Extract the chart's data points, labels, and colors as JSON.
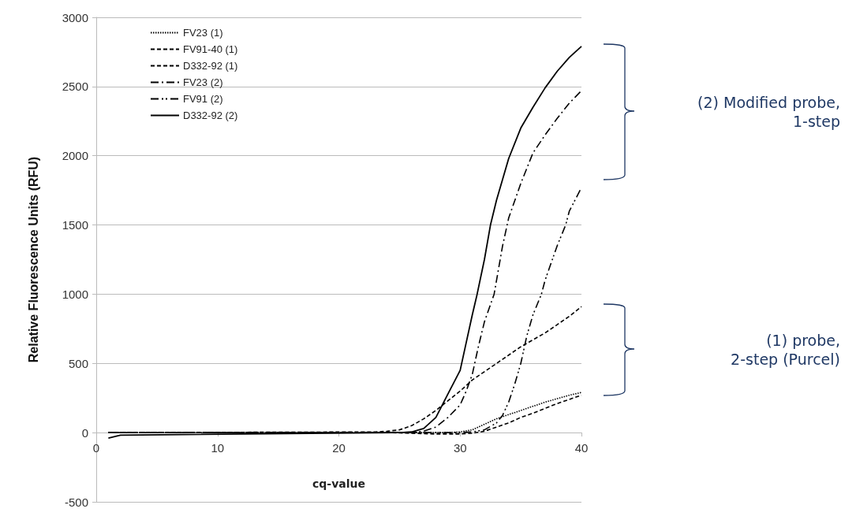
{
  "chart_data": {
    "type": "line",
    "xlabel": "cq-value",
    "ylabel": "Relative Fluorescence Units (RFU)",
    "xlim": [
      0,
      40
    ],
    "xticks": [
      0,
      10,
      20,
      30,
      40
    ],
    "ylim": [
      -500,
      3000
    ],
    "yticks": [
      -500,
      0,
      500,
      1000,
      1500,
      2000,
      2500,
      3000
    ],
    "grid": "y",
    "legend": "top left",
    "marker": "none",
    "annotations": [
      "(2) Modified probe,\n1-step",
      "(1) probe,\n2-step (Purcel)"
    ],
    "series": [
      {
        "name": "FV23 (1)",
        "color": "#000000",
        "line_style": "dotted",
        "x": [
          1,
          29,
          30,
          31,
          32,
          33,
          34,
          35,
          36,
          37,
          38,
          39,
          40
        ],
        "values": [
          0,
          0,
          5,
          20,
          60,
          100,
          130,
          160,
          190,
          220,
          245,
          270,
          290
        ]
      },
      {
        "name": "FV91-40 (1)",
        "color": "#000000",
        "line_style": "dashed",
        "x": [
          1,
          24,
          28,
          30,
          31,
          32,
          33,
          34,
          35,
          36,
          37,
          38,
          39,
          40
        ],
        "values": [
          0,
          0,
          -10,
          -10,
          -5,
          10,
          40,
          70,
          110,
          140,
          175,
          210,
          240,
          270
        ]
      },
      {
        "name": "D332-92 (1)",
        "color": "#000000",
        "line_style": "dashed",
        "x": [
          1,
          23,
          24,
          25,
          26,
          27,
          28,
          29,
          30,
          31,
          32,
          33,
          34,
          35,
          36,
          37,
          38,
          39,
          40
        ],
        "values": [
          0,
          5,
          10,
          20,
          50,
          100,
          160,
          230,
          300,
          380,
          440,
          500,
          560,
          620,
          670,
          720,
          780,
          840,
          910
        ]
      },
      {
        "name": "FV23 (2)",
        "color": "#000000",
        "line_style": "dashdot",
        "x": [
          1,
          26,
          27,
          28,
          29,
          30,
          30.5,
          31,
          31.5,
          32,
          32.8,
          33.5,
          34,
          35,
          36,
          37,
          38,
          39,
          40
        ],
        "values": [
          0,
          0,
          10,
          40,
          110,
          200,
          300,
          420,
          620,
          800,
          1000,
          1350,
          1550,
          1800,
          2020,
          2150,
          2270,
          2380,
          2470
        ]
      },
      {
        "name": "FV91 (2)",
        "color": "#000000",
        "line_style": "dashdotdot",
        "x": [
          1,
          30,
          31,
          32,
          33,
          33.5,
          34,
          34.5,
          35,
          35.5,
          36,
          36.7,
          37,
          38,
          38.7,
          39,
          40
        ],
        "values": [
          0,
          0,
          5,
          20,
          70,
          125,
          220,
          350,
          500,
          700,
          850,
          1000,
          1100,
          1350,
          1500,
          1600,
          1770
        ]
      },
      {
        "name": "D332-92 (2)",
        "color": "#000000",
        "line_style": "solid",
        "x": [
          1,
          2,
          25,
          26,
          27,
          28,
          29,
          30,
          30.5,
          31,
          31.4,
          32,
          32.5,
          33,
          34,
          35,
          36,
          37,
          38,
          39,
          40
        ],
        "values": [
          -40,
          -18,
          0,
          5,
          30,
          110,
          280,
          450,
          650,
          850,
          1000,
          1250,
          1500,
          1680,
          1980,
          2200,
          2350,
          2490,
          2610,
          2710,
          2790
        ]
      }
    ]
  }
}
